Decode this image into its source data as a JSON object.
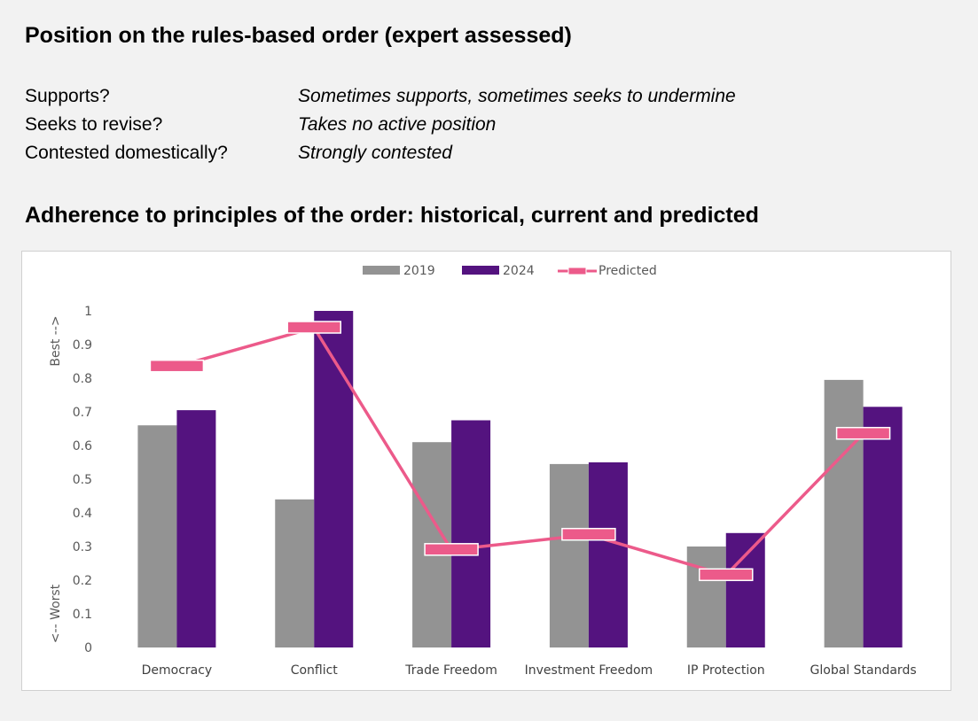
{
  "title": "Position on the rules-based order (expert assessed)",
  "questions": [
    {
      "label": "Supports?",
      "answer": "Sometimes supports, sometimes seeks to undermine"
    },
    {
      "label": "Seeks to revise?",
      "answer": "Takes no active position"
    },
    {
      "label": "Contested domestically?",
      "answer": "Strongly contested"
    }
  ],
  "chart_title": "Adherence to principles of the order: historical, current and predicted",
  "colors": {
    "s2019": "#939393",
    "s2024": "#54137f",
    "predicted": "#ec5a8a"
  },
  "chart_data": {
    "type": "bar",
    "title": "Adherence to principles of the order: historical, current and predicted",
    "categories": [
      "Democracy",
      "Conflict",
      "Trade Freedom",
      "Investment Freedom",
      "IP Protection",
      "Global Standards"
    ],
    "series": [
      {
        "name": "2019",
        "type": "bar",
        "values": [
          0.66,
          0.44,
          0.61,
          0.545,
          0.3,
          0.795
        ]
      },
      {
        "name": "2024",
        "type": "bar",
        "values": [
          0.705,
          1.0,
          0.675,
          0.55,
          0.34,
          0.715
        ]
      },
      {
        "name": "Predicted",
        "type": "line",
        "values": [
          0.835,
          0.95,
          0.29,
          0.335,
          0.215,
          0.635
        ]
      }
    ],
    "y_ticks": [
      "0",
      "0.1",
      "0.2",
      "0.3",
      "0.4",
      "0.5",
      "0.6",
      "0.7",
      "0.8",
      "0.9",
      "1"
    ],
    "ylim": [
      0,
      1
    ],
    "ylabel_top": "Best -->",
    "ylabel_bottom": "<-- Worst",
    "legend_position": "top-center",
    "grid": false
  }
}
